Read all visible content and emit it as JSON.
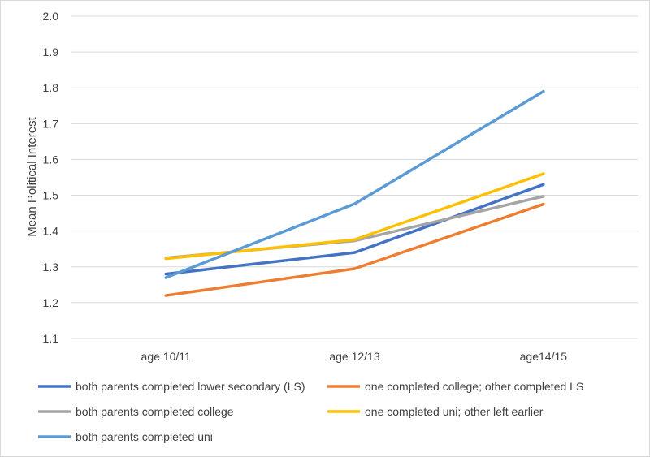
{
  "chart_data": {
    "type": "line",
    "title": "",
    "xlabel": "",
    "ylabel": "Mean Political Interest",
    "categories": [
      "age 10/11",
      "age 12/13",
      "age14/15"
    ],
    "ylim": [
      1.1,
      2.0
    ],
    "yticks": [
      "1.1",
      "1.2",
      "1.3",
      "1.4",
      "1.5",
      "1.6",
      "1.7",
      "1.8",
      "1.9",
      "2.0"
    ],
    "grid": true,
    "legend_position": "bottom",
    "series": [
      {
        "name": "both parents completed lower secondary (LS)",
        "color": "#4472C4",
        "values": [
          1.28,
          1.34,
          1.53
        ]
      },
      {
        "name": "one completed college; other completed LS",
        "color": "#ED7D31",
        "values": [
          1.22,
          1.295,
          1.475
        ]
      },
      {
        "name": "both parents completed college",
        "color": "#A5A5A5",
        "values": [
          1.325,
          1.373,
          1.497
        ]
      },
      {
        "name": "one completed uni; other left earlier",
        "color": "#FFC000",
        "values": [
          1.323,
          1.376,
          1.56
        ]
      },
      {
        "name": "both parents completed uni",
        "color": "#5B9BD5",
        "values": [
          1.27,
          1.476,
          1.79
        ]
      }
    ]
  }
}
